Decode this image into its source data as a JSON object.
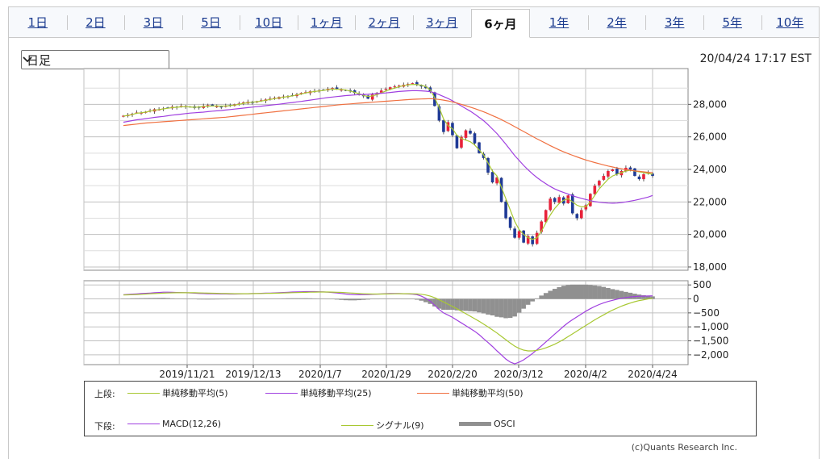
{
  "tabs": [
    {
      "label": "1日",
      "active": false
    },
    {
      "label": "2日",
      "active": false
    },
    {
      "label": "3日",
      "active": false
    },
    {
      "label": "5日",
      "active": false
    },
    {
      "label": "10日",
      "active": false
    },
    {
      "label": "1ヶ月",
      "active": false
    },
    {
      "label": "2ヶ月",
      "active": false
    },
    {
      "label": "3ヶ月",
      "active": false
    },
    {
      "label": "6ヶ月",
      "active": true
    },
    {
      "label": "1年",
      "active": false
    },
    {
      "label": "2年",
      "active": false
    },
    {
      "label": "3年",
      "active": false
    },
    {
      "label": "5年",
      "active": false
    },
    {
      "label": "10年",
      "active": false
    }
  ],
  "period_select": {
    "value": "日足",
    "icon": "chevron-down-icon"
  },
  "timestamp": "20/04/24 17:17 EST",
  "credit": "(c)Quants Research Inc.",
  "legend": {
    "upper_label": "上段:",
    "lower_label": "下段:",
    "upper_items": [
      {
        "name": "単純移動平均(5)",
        "color": "#a8c832"
      },
      {
        "name": "単純移動平均(25)",
        "color": "#a040e0"
      },
      {
        "name": "単純移動平均(50)",
        "color": "#f07040"
      }
    ],
    "lower_items": [
      {
        "name": "MACD(12,26)",
        "color": "#a040e0"
      },
      {
        "name": "シグナル(9)",
        "color": "#a8c832"
      },
      {
        "name": "OSCI",
        "color": "#909090"
      }
    ]
  },
  "colors": {
    "up": "#e8223a",
    "down": "#1f3a96",
    "grid": "#c0c0c0",
    "osci": "#909090"
  },
  "chart_data": [
    {
      "type": "candlestick",
      "panel": "price",
      "y_ticks": [
        "28,000",
        "26,000",
        "24,000",
        "22,000",
        "20,000",
        "18,000"
      ],
      "y_tick_values": [
        28000,
        26000,
        24000,
        22000,
        20000,
        18000
      ],
      "ylim": [
        17800,
        30200
      ],
      "x_tick_labels": [
        "2019/11/21",
        "2019/12/13",
        "2020/1/7",
        "2020/1/29",
        "2020/2/20",
        "2020/3/12",
        "2020/4/2",
        "2020/4/24"
      ],
      "close": [
        27300,
        27350,
        27420,
        27500,
        27480,
        27550,
        27620,
        27700,
        27680,
        27750,
        27800,
        27850,
        27820,
        27900,
        27880,
        27850,
        27780,
        27820,
        27900,
        27950,
        27920,
        27880,
        27850,
        27900,
        27950,
        28000,
        28050,
        28120,
        28150,
        28100,
        28180,
        28250,
        28300,
        28350,
        28400,
        28450,
        28480,
        28500,
        28550,
        28620,
        28700,
        28750,
        28800,
        28820,
        28850,
        28900,
        28950,
        29000,
        28950,
        28900,
        28850,
        28800,
        28700,
        28600,
        28500,
        28350,
        28600,
        28700,
        28850,
        28950,
        29050,
        29100,
        29150,
        29200,
        29250,
        29300,
        29200,
        29100,
        29000,
        28800,
        27900,
        27000,
        26300,
        26900,
        26100,
        25300,
        26000,
        26400,
        26200,
        25600,
        25000,
        24700,
        23800,
        23200,
        23500,
        22000,
        21000,
        20400,
        19800,
        20200,
        19500,
        19900,
        19400,
        20100,
        20800,
        21500,
        22200,
        22000,
        22300,
        21900,
        22400,
        21300,
        21000,
        21500,
        21800,
        22500,
        23000,
        23300,
        23600,
        23900,
        24000,
        23700,
        23900,
        24100,
        24000,
        23600,
        23400,
        23700,
        23800,
        23600
      ],
      "series": [
        {
          "name": "単純移動平均(5)",
          "values": [
            27280,
            27320,
            27380,
            27450,
            27480,
            27520,
            27580,
            27640,
            27680,
            27720,
            27760,
            27800,
            27820,
            27850,
            27860,
            27840,
            27820,
            27840,
            27870,
            27890,
            27900,
            27900,
            27890,
            27900,
            27920,
            27960,
            28000,
            28060,
            28100,
            28130,
            28160,
            28200,
            28250,
            28300,
            28350,
            28400,
            28440,
            28480,
            28520,
            28580,
            28640,
            28700,
            28750,
            28790,
            28820,
            28860,
            28900,
            28940,
            28930,
            28920,
            28880,
            28820,
            28740,
            28650,
            28550,
            28480,
            28520,
            28600,
            28700,
            28820,
            28920,
            29000,
            29080,
            29150,
            29200,
            29230,
            29220,
            29180,
            29090,
            28900,
            28400,
            27800,
            27100,
            26700,
            26500,
            26100,
            25900,
            25800,
            25700,
            25500,
            25200,
            24900,
            24400,
            23900,
            23600,
            22900,
            22200,
            21500,
            20800,
            20300,
            20000,
            19800,
            19700,
            19800,
            20200,
            20700,
            21200,
            21600,
            21900,
            22100,
            22200,
            22000,
            21800,
            21700,
            21700,
            22000,
            22400,
            22800,
            23100,
            23400,
            23600,
            23700,
            23800,
            23900,
            23950,
            23900,
            23850,
            23800,
            23750,
            23700
          ]
        },
        {
          "name": "単純移動平均(25)",
          "values": [
            26900,
            26950,
            27000,
            27050,
            27080,
            27120,
            27160,
            27200,
            27230,
            27260,
            27300,
            27340,
            27370,
            27400,
            27430,
            27460,
            27480,
            27500,
            27520,
            27550,
            27580,
            27600,
            27620,
            27650,
            27680,
            27710,
            27740,
            27770,
            27800,
            27830,
            27860,
            27890,
            27920,
            27950,
            27980,
            28010,
            28040,
            28080,
            28110,
            28150,
            28180,
            28220,
            28260,
            28300,
            28340,
            28380,
            28420,
            28450,
            28480,
            28510,
            28540,
            28560,
            28580,
            28600,
            28610,
            28620,
            28640,
            28660,
            28680,
            28700,
            28730,
            28760,
            28790,
            28810,
            28830,
            28840,
            28840,
            28830,
            28810,
            28780,
            28700,
            28600,
            28480,
            28360,
            28220,
            28060,
            27900,
            27740,
            27580,
            27400,
            27200,
            27000,
            26750,
            26480,
            26200,
            25880,
            25550,
            25200,
            24850,
            24550,
            24250,
            23980,
            23720,
            23500,
            23300,
            23120,
            22950,
            22800,
            22680,
            22580,
            22480,
            22380,
            22300,
            22220,
            22150,
            22080,
            22020,
            21980,
            21950,
            21930,
            21920,
            21930,
            21960,
            22000,
            22050,
            22100,
            22160,
            22230,
            22300,
            22400
          ]
        },
        {
          "name": "単純移動平均(50)",
          "values": [
            26700,
            26730,
            26760,
            26790,
            26820,
            26850,
            26870,
            26890,
            26910,
            26930,
            26950,
            26970,
            26990,
            27010,
            27030,
            27050,
            27070,
            27090,
            27110,
            27130,
            27150,
            27170,
            27190,
            27210,
            27240,
            27270,
            27300,
            27330,
            27360,
            27390,
            27420,
            27450,
            27480,
            27510,
            27540,
            27570,
            27600,
            27630,
            27660,
            27690,
            27720,
            27750,
            27780,
            27810,
            27840,
            27870,
            27900,
            27930,
            27960,
            27990,
            28010,
            28030,
            28050,
            28070,
            28090,
            28110,
            28130,
            28150,
            28170,
            28190,
            28210,
            28230,
            28250,
            28270,
            28290,
            28310,
            28320,
            28330,
            28340,
            28350,
            28330,
            28300,
            28260,
            28210,
            28150,
            28080,
            28000,
            27920,
            27830,
            27740,
            27640,
            27540,
            27430,
            27310,
            27190,
            27060,
            26920,
            26780,
            26630,
            26480,
            26330,
            26180,
            26030,
            25880,
            25740,
            25600,
            25460,
            25330,
            25200,
            25080,
            24970,
            24870,
            24770,
            24670,
            24580,
            24500,
            24420,
            24350,
            24280,
            24210,
            24150,
            24090,
            24040,
            23990,
            23950,
            23910,
            23880,
            23850,
            23820,
            23800
          ]
        }
      ]
    },
    {
      "type": "macd",
      "panel": "indicator",
      "y_ticks": [
        "500",
        "0",
        "−500",
        "−1,000",
        "−1,500",
        "−2,000"
      ],
      "y_tick_values": [
        500,
        0,
        -500,
        -1000,
        -1500,
        -2000
      ],
      "ylim": [
        -2350,
        650
      ],
      "series": [
        {
          "name": "MACD(12,26)",
          "values": [
            150,
            160,
            170,
            180,
            190,
            200,
            210,
            220,
            230,
            240,
            240,
            235,
            230,
            225,
            220,
            215,
            205,
            195,
            190,
            185,
            182,
            180,
            178,
            176,
            175,
            175,
            178,
            182,
            186,
            190,
            195,
            200,
            205,
            210,
            215,
            222,
            230,
            238,
            245,
            250,
            255,
            260,
            262,
            260,
            255,
            248,
            240,
            230,
            215,
            195,
            175,
            160,
            150,
            148,
            150,
            155,
            162,
            170,
            178,
            185,
            190,
            192,
            190,
            185,
            178,
            170,
            150,
            100,
            20,
            -80,
            -230,
            -380,
            -500,
            -580,
            -660,
            -760,
            -860,
            -960,
            -1060,
            -1160,
            -1280,
            -1420,
            -1560,
            -1700,
            -1860,
            -2000,
            -2150,
            -2260,
            -2320,
            -2260,
            -2180,
            -2070,
            -1950,
            -1820,
            -1680,
            -1540,
            -1400,
            -1260,
            -1120,
            -980,
            -850,
            -740,
            -640,
            -540,
            -440,
            -350,
            -270,
            -200,
            -140,
            -90,
            -50,
            -10,
            25,
            50,
            70,
            85,
            95,
            100,
            105,
            110
          ]
        },
        {
          "name": "シグナル(9)",
          "values": [
            140,
            145,
            150,
            158,
            166,
            174,
            182,
            190,
            198,
            206,
            212,
            216,
            219,
            221,
            222,
            221,
            219,
            215,
            211,
            207,
            203,
            199,
            195,
            192,
            189,
            186,
            185,
            185,
            186,
            188,
            190,
            193,
            196,
            199,
            203,
            207,
            212,
            217,
            222,
            227,
            232,
            236,
            240,
            243,
            245,
            246,
            245,
            243,
            238,
            231,
            222,
            212,
            202,
            192,
            184,
            178,
            175,
            174,
            175,
            177,
            180,
            183,
            185,
            186,
            186,
            184,
            178,
            164,
            138,
            100,
            40,
            -30,
            -110,
            -190,
            -270,
            -350,
            -440,
            -530,
            -620,
            -710,
            -800,
            -900,
            -1000,
            -1110,
            -1220,
            -1340,
            -1460,
            -1580,
            -1690,
            -1770,
            -1830,
            -1860,
            -1860,
            -1840,
            -1800,
            -1750,
            -1690,
            -1620,
            -1540,
            -1450,
            -1350,
            -1250,
            -1150,
            -1050,
            -950,
            -850,
            -750,
            -660,
            -570,
            -480,
            -400,
            -330,
            -260,
            -200,
            -150,
            -100,
            -60,
            -30,
            0,
            20
          ]
        },
        {
          "name": "OSCI",
          "values": [
            10,
            15,
            20,
            22,
            24,
            26,
            28,
            30,
            32,
            34,
            28,
            19,
            11,
            4,
            -2,
            -6,
            -14,
            -20,
            -21,
            -22,
            -21,
            -19,
            -17,
            -16,
            -14,
            -11,
            -7,
            -3,
            0,
            2,
            5,
            7,
            9,
            11,
            12,
            15,
            18,
            21,
            23,
            23,
            23,
            24,
            22,
            17,
            10,
            2,
            -5,
            -13,
            -23,
            -36,
            -47,
            -52,
            -52,
            -44,
            -34,
            -23,
            -13,
            -4,
            3,
            8,
            10,
            9,
            5,
            -1,
            -8,
            -14,
            -28,
            -64,
            -118,
            -180,
            -270,
            -350,
            -390,
            -390,
            -390,
            -410,
            -420,
            -430,
            -440,
            -450,
            -480,
            -520,
            -560,
            -590,
            -640,
            -660,
            -690,
            -680,
            -630,
            -490,
            -350,
            -210,
            -90,
            20,
            120,
            210,
            290,
            360,
            420,
            470,
            500,
            510,
            510,
            510,
            510,
            500,
            480,
            460,
            430,
            390,
            350,
            320,
            285,
            250,
            220,
            185,
            155,
            130,
            105,
            90
          ]
        }
      ]
    }
  ]
}
